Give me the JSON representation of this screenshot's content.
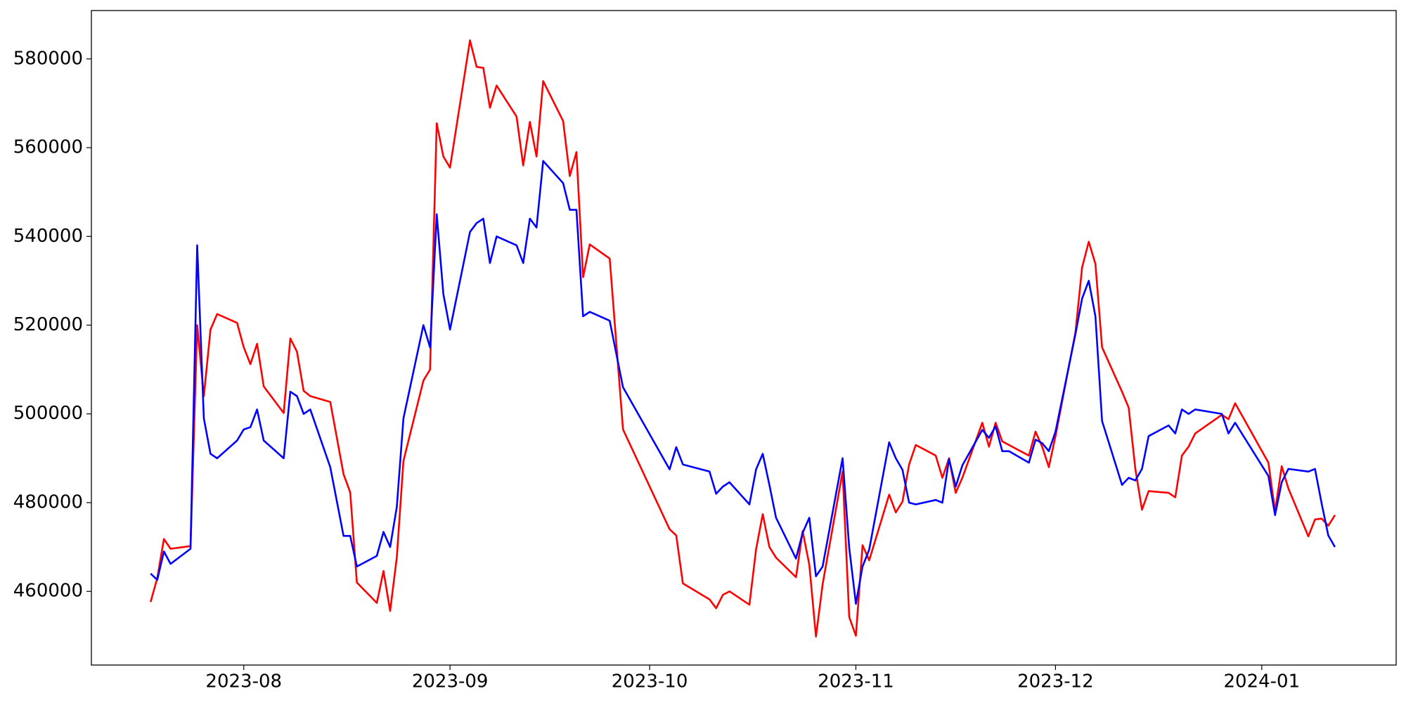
{
  "chart_data": {
    "type": "line",
    "x": [
      19556,
      19557,
      19558,
      19559,
      19562,
      19563,
      19564,
      19565,
      19566,
      19569,
      19570,
      19571,
      19572,
      19573,
      19576,
      19577,
      19578,
      19579,
      19580,
      19583,
      19585,
      19586,
      19587,
      19590,
      19591,
      19592,
      19593,
      19594,
      19597,
      19598,
      19599,
      19600,
      19601,
      19604,
      19605,
      19606,
      19607,
      19608,
      19611,
      19612,
      19613,
      19614,
      19615,
      19618,
      19619,
      19620,
      19621,
      19622,
      19625,
      19627,
      19634,
      19635,
      19636,
      19640,
      19641,
      19642,
      19643,
      19646,
      19647,
      19648,
      19649,
      19650,
      19653,
      19654,
      19655,
      19656,
      19657,
      19660,
      19661,
      19662,
      19663,
      19664,
      19667,
      19668,
      19669,
      19670,
      19671,
      19674,
      19675,
      19676,
      19677,
      19678,
      19681,
      19682,
      19683,
      19684,
      19685,
      19688,
      19689,
      19690,
      19691,
      19692,
      19695,
      19696,
      19697,
      19698,
      19699,
      19702,
      19703,
      19704,
      19705,
      19706,
      19709,
      19710,
      19711,
      19712,
      19713,
      19717,
      19718,
      19719,
      19724,
      19725,
      19726,
      19727,
      19730,
      19731,
      19732,
      19733,
      19734
    ],
    "series": [
      {
        "color": "#ff0000",
        "values": [
          457600,
          463000,
          471800,
          469600,
          470200,
          520000,
          504000,
          519000,
          522500,
          520500,
          515000,
          511200,
          515800,
          506200,
          500200,
          517000,
          514000,
          505200,
          504000,
          502700,
          486400,
          482300,
          462000,
          457400,
          464600,
          455600,
          467600,
          489400,
          507500,
          510000,
          565500,
          558000,
          555500,
          584200,
          578200,
          578000,
          569000,
          574000,
          567000,
          556000,
          565800,
          558000,
          575000,
          566000,
          553600,
          559000,
          530800,
          538200,
          535000,
          496500,
          474000,
          472600,
          461800,
          458200,
          456200,
          459200,
          460000,
          457000,
          469500,
          477400,
          470000,
          467600,
          463200,
          473600,
          466000,
          449800,
          461600,
          487000,
          454200,
          450000,
          470400,
          467000,
          481800,
          477800,
          480200,
          488600,
          493000,
          490600,
          485600,
          490000,
          482200,
          485600,
          498000,
          492600,
          498000,
          493800,
          493000,
          490600,
          496000,
          492600,
          488000,
          495000,
          518400,
          533000,
          538800,
          533800,
          515000,
          505000,
          501400,
          487600,
          478400,
          482600,
          482200,
          481200,
          490600,
          492600,
          495600,
          499800,
          498800,
          502400,
          489000,
          478000,
          488200,
          483200,
          472400,
          476200,
          476400,
          474800,
          477200
        ]
      },
      {
        "color": "#0000ff",
        "values": [
          464000,
          462600,
          469000,
          466200,
          469600,
          538000,
          499000,
          491000,
          490000,
          494000,
          496500,
          497000,
          501000,
          494000,
          490000,
          505000,
          504000,
          500000,
          501000,
          488000,
          472500,
          472500,
          465600,
          468000,
          473400,
          470000,
          479000,
          499000,
          520000,
          515000,
          545000,
          527000,
          519000,
          541000,
          543000,
          544000,
          534000,
          540000,
          538000,
          534000,
          544000,
          542000,
          557000,
          552000,
          546000,
          546000,
          522000,
          523000,
          521000,
          506000,
          487500,
          492500,
          488600,
          487000,
          482000,
          483600,
          484600,
          479600,
          487500,
          491000,
          484000,
          476600,
          467400,
          473200,
          476600,
          463400,
          465600,
          490000,
          469800,
          457200,
          465600,
          469400,
          493600,
          490000,
          487400,
          480000,
          479600,
          480600,
          480000,
          489800,
          483600,
          488400,
          496400,
          494600,
          497200,
          491600,
          491600,
          489000,
          494200,
          493400,
          491600,
          496000,
          518000,
          526000,
          530000,
          522000,
          498400,
          484000,
          485600,
          485000,
          487600,
          495000,
          497400,
          495600,
          501000,
          500000,
          501000,
          500000,
          495600,
          498000,
          486000,
          477200,
          484600,
          487600,
          487000,
          487600,
          479800,
          472600,
          470000
        ]
      }
    ],
    "xlim": [
      19547.1,
      19743.2
    ],
    "xticks": [
      {
        "value": 19570,
        "label": "2023-08"
      },
      {
        "value": 19601,
        "label": "2023-09"
      },
      {
        "value": 19631,
        "label": "2023-10"
      },
      {
        "value": 19662,
        "label": "2023-11"
      },
      {
        "value": 19692,
        "label": "2023-12"
      },
      {
        "value": 19723,
        "label": "2024-01"
      }
    ],
    "ylim": [
      443400,
      590900
    ],
    "yticks": [
      460000,
      480000,
      500000,
      520000,
      540000,
      560000,
      580000
    ]
  }
}
